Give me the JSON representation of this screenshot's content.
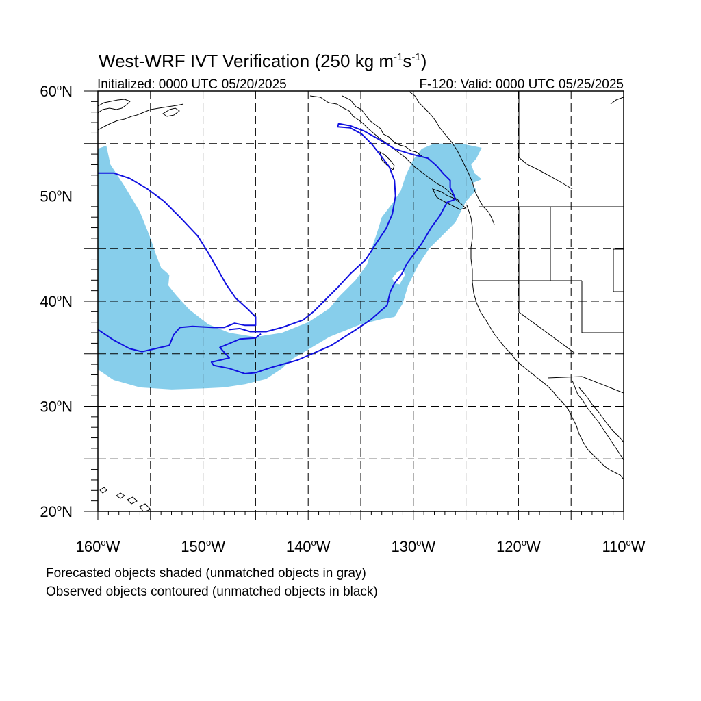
{
  "title": {
    "main": "West-WRF IVT Verification (250 kg m",
    "sup1": "-1",
    "mid": "s",
    "sup2": "-1",
    "end": ")"
  },
  "subtitle": {
    "left": "Initialized: 0000 UTC 05/20/2025",
    "right": "F-120: Valid: 0000 UTC 05/25/2025"
  },
  "map": {
    "lon_range": [
      -160,
      -110
    ],
    "lat_range": [
      20,
      60
    ],
    "lat_ticks": [
      {
        "deg": "60",
        "hemi": "N"
      },
      {
        "deg": "50",
        "hemi": "N"
      },
      {
        "deg": "40",
        "hemi": "N"
      },
      {
        "deg": "30",
        "hemi": "N"
      },
      {
        "deg": "20",
        "hemi": "N"
      }
    ],
    "lon_ticks": [
      {
        "deg": "160",
        "hemi": "W"
      },
      {
        "deg": "150",
        "hemi": "W"
      },
      {
        "deg": "140",
        "hemi": "W"
      },
      {
        "deg": "130",
        "hemi": "W"
      },
      {
        "deg": "120",
        "hemi": "W"
      },
      {
        "deg": "110",
        "hemi": "W"
      }
    ],
    "grid_lons": [
      -155,
      -150,
      -145,
      -140,
      -135,
      -130,
      -125,
      -120,
      -115
    ],
    "grid_lats": [
      25,
      30,
      35,
      40,
      45,
      50,
      55
    ],
    "colors": {
      "forecast_fill": "#87CEEB",
      "observed_contour": "#1010E0",
      "coastline": "#000000",
      "grid": "#000000"
    },
    "forecast_object": [
      [
        -160,
        54.5
      ],
      [
        -159.2,
        54.8
      ],
      [
        -158.8,
        53
      ],
      [
        -157.5,
        51
      ],
      [
        -156,
        48.5
      ],
      [
        -155,
        46
      ],
      [
        -154.5,
        44.5
      ],
      [
        -154,
        43.2
      ],
      [
        -153.2,
        42.5
      ],
      [
        -153.3,
        41.5
      ],
      [
        -152.5,
        40.5
      ],
      [
        -151.3,
        39.2
      ],
      [
        -149.5,
        37.8
      ],
      [
        -147.5,
        37
      ],
      [
        -145,
        36.6
      ],
      [
        -142.5,
        37
      ],
      [
        -140,
        38
      ],
      [
        -138,
        39.3
      ],
      [
        -137,
        40.5
      ],
      [
        -135.5,
        42
      ],
      [
        -134.4,
        43.5
      ],
      [
        -133.8,
        45.5
      ],
      [
        -133.4,
        46.7
      ],
      [
        -133,
        48
      ],
      [
        -132,
        49.3
      ],
      [
        -131.2,
        50.5
      ],
      [
        -130.7,
        52
      ],
      [
        -130,
        53.5
      ],
      [
        -129.2,
        54.5
      ],
      [
        -128,
        55
      ],
      [
        -126.5,
        55
      ],
      [
        -125.5,
        55
      ],
      [
        -124.5,
        54.8
      ],
      [
        -123.5,
        54.6
      ],
      [
        -124,
        53.6
      ],
      [
        -124.5,
        53
      ],
      [
        -124.2,
        52.2
      ],
      [
        -123.5,
        51.6
      ],
      [
        -124.5,
        51.2
      ],
      [
        -124,
        50.6
      ],
      [
        -125,
        49.5
      ],
      [
        -125.5,
        48.5
      ],
      [
        -126,
        47.5
      ],
      [
        -127,
        46.5
      ],
      [
        -128.5,
        45
      ],
      [
        -129.5,
        43.5
      ],
      [
        -130.5,
        41.5
      ],
      [
        -131,
        39.8
      ],
      [
        -131.8,
        38.5
      ],
      [
        -133,
        38.3
      ],
      [
        -135,
        37.8
      ],
      [
        -138,
        36.6
      ],
      [
        -140,
        35.4
      ],
      [
        -141.5,
        34.5
      ],
      [
        -142.5,
        33.6
      ],
      [
        -144,
        32.6
      ],
      [
        -146,
        32.1
      ],
      [
        -148,
        31.8
      ],
      [
        -150,
        31.7
      ],
      [
        -153,
        31.6
      ],
      [
        -156,
        31.8
      ],
      [
        -158.5,
        32.5
      ],
      [
        -160,
        33.5
      ]
    ],
    "forecast_hole": [
      [
        -132,
        42.2
      ],
      [
        -131.5,
        42.8
      ],
      [
        -131,
        43
      ],
      [
        -130.8,
        42.5
      ],
      [
        -131.3,
        41.6
      ],
      [
        -131.8,
        41.7
      ]
    ],
    "observed_contours": [
      [
        [
          -160,
          52.2
        ],
        [
          -158.5,
          52.2
        ],
        [
          -157,
          51.7
        ],
        [
          -155.3,
          50.7
        ],
        [
          -153.7,
          49.5
        ],
        [
          -152.2,
          48
        ],
        [
          -150.5,
          46.2
        ],
        [
          -149.5,
          44.6
        ],
        [
          -148.7,
          43.2
        ],
        [
          -147.8,
          41.6
        ],
        [
          -146.9,
          40.3
        ],
        [
          -145.8,
          39.3
        ],
        [
          -145,
          38.5
        ],
        [
          -145,
          37.7
        ],
        [
          -146,
          37.7
        ],
        [
          -147,
          37.9
        ],
        [
          -148,
          37.5
        ],
        [
          -149,
          37.5
        ],
        [
          -151,
          37.6
        ],
        [
          -152.2,
          37.5
        ],
        [
          -152.8,
          36.8
        ],
        [
          -153.2,
          35.8
        ],
        [
          -154.5,
          35.5
        ],
        [
          -155.8,
          35.2
        ],
        [
          -157,
          35.5
        ],
        [
          -158.5,
          36.3
        ],
        [
          -160,
          37.3
        ]
      ],
      [
        [
          -147.5,
          37.3
        ],
        [
          -146.5,
          37.4
        ],
        [
          -145.5,
          37.1
        ],
        [
          -144,
          37.1
        ],
        [
          -142.5,
          37.5
        ],
        [
          -140.5,
          38.2
        ],
        [
          -139.5,
          39
        ],
        [
          -138.5,
          40
        ],
        [
          -137.2,
          41.3
        ],
        [
          -136,
          42.6
        ],
        [
          -134.5,
          44
        ],
        [
          -133.6,
          45.4
        ],
        [
          -132.6,
          46.9
        ],
        [
          -132,
          48.3
        ],
        [
          -131.7,
          50
        ],
        [
          -131.8,
          51.5
        ],
        [
          -132.3,
          52.8
        ],
        [
          -133.2,
          54
        ],
        [
          -134,
          55
        ],
        [
          -134.9,
          55.9
        ],
        [
          -136,
          56.5
        ],
        [
          -137.2,
          56.6
        ],
        [
          -137.1,
          56.9
        ],
        [
          -136,
          56.7
        ],
        [
          -134.7,
          56.2
        ],
        [
          -133.1,
          55.3
        ],
        [
          -131.8,
          54.5
        ],
        [
          -130.2,
          54
        ],
        [
          -128.6,
          53.6
        ],
        [
          -127.8,
          52.9
        ],
        [
          -127.1,
          52.1
        ],
        [
          -126.5,
          51.5
        ],
        [
          -126.5,
          50.8
        ],
        [
          -126.2,
          50.2
        ],
        [
          -126,
          49.7
        ],
        [
          -126.8,
          49.4
        ],
        [
          -127.5,
          48.1
        ],
        [
          -128.3,
          47
        ],
        [
          -129.2,
          45.5
        ],
        [
          -130.6,
          43.6
        ],
        [
          -131.1,
          42.6
        ],
        [
          -131.8,
          41.7
        ],
        [
          -132.2,
          40.9
        ],
        [
          -132.5,
          39.6
        ],
        [
          -134.1,
          38.2
        ],
        [
          -135.6,
          37.2
        ],
        [
          -137.8,
          35.8
        ],
        [
          -141,
          34.4
        ],
        [
          -143.5,
          33.7
        ],
        [
          -145,
          33.2
        ],
        [
          -146,
          33.1
        ],
        [
          -147.5,
          33.6
        ],
        [
          -149,
          33.9
        ],
        [
          -149.2,
          34.2
        ],
        [
          -147.5,
          34.6
        ],
        [
          -148.4,
          35.6
        ],
        [
          -146.5,
          36.4
        ],
        [
          -145,
          36.5
        ],
        [
          -144.5,
          36.9
        ]
      ]
    ]
  },
  "footnotes": [
    "Forecasted objects shaded (unmatched objects in gray)",
    "Observed objects contoured (unmatched objects in black)"
  ]
}
